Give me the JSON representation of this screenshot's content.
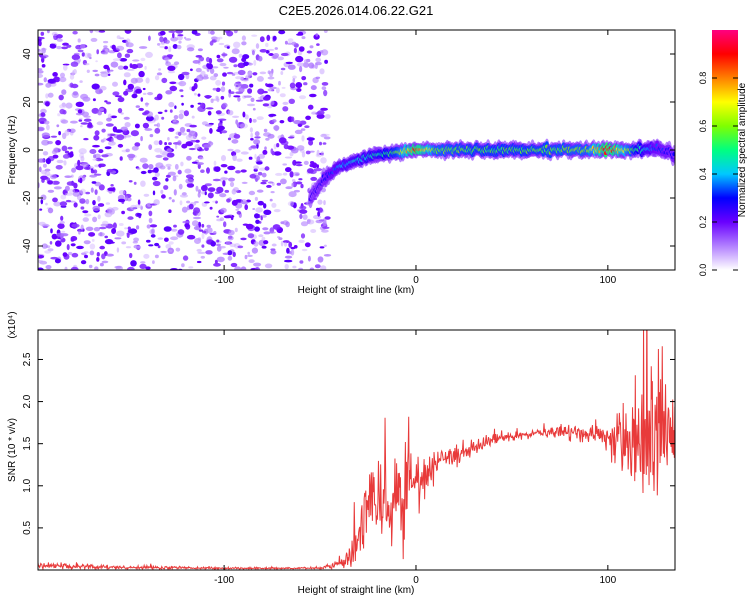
{
  "title": "C2E5.2026.014.06.22.G21",
  "chart_data": [
    {
      "type": "heatmap",
      "title": "C2E5.2026.014.06.22.G21",
      "xlabel": "Height of straight line (km)",
      "ylabel": "Frequency (Hz)",
      "xlim": [
        -197,
        135
      ],
      "ylim": [
        -50,
        50
      ],
      "xticks": [
        -100,
        0,
        100
      ],
      "xtick_labels": [
        "-100",
        "0",
        "100"
      ],
      "yticks": [
        -40,
        -20,
        0,
        20,
        40
      ],
      "ytick_labels": [
        "-40",
        "-20",
        "0",
        "20",
        "40"
      ],
      "colorbar": {
        "label": "Normalized spectral amplitude",
        "range": [
          0,
          1
        ],
        "ticks": [
          0,
          0.2,
          0.4,
          0.6,
          0.8
        ],
        "tick_labels": [
          "0.0",
          "0.2",
          "0.4",
          "0.6",
          "0.8"
        ],
        "colors": [
          "#ffffff",
          "#b280ff",
          "#6a00ff",
          "#0000ff",
          "#00c8ff",
          "#00ff80",
          "#80ff00",
          "#ffff00",
          "#ff8000",
          "#ff0000",
          "#ff0080"
        ]
      },
      "noise_region_x": [
        -197,
        -50
      ],
      "noise_amplitude": 0.2,
      "signal_ridge": {
        "x": [
          -55,
          -48,
          -40,
          -30,
          -20,
          -10,
          0,
          10,
          30,
          60,
          90,
          100,
          115,
          125,
          135
        ],
        "frequency": [
          -20,
          -12,
          -7,
          -4,
          -2,
          -1,
          0,
          0,
          0,
          0,
          0,
          0,
          0,
          1,
          -2
        ],
        "amplitude": [
          0.25,
          0.3,
          0.4,
          0.45,
          0.5,
          0.6,
          0.95,
          0.65,
          0.6,
          0.6,
          0.65,
          0.97,
          0.55,
          0.35,
          0.3
        ]
      }
    },
    {
      "type": "line",
      "xlabel": "Height of straight line (km)",
      "ylabel": "SNR (10 * v/v)",
      "y_multiplier": "(x10⁴)",
      "xlim": [
        -197,
        135
      ],
      "ylim": [
        0,
        2.85
      ],
      "xticks": [
        -100,
        0,
        100
      ],
      "xtick_labels": [
        "-100",
        "0",
        "100"
      ],
      "yticks": [
        0.5,
        1.0,
        1.5,
        2.0,
        2.5
      ],
      "ytick_labels": [
        "0.5",
        "1.0",
        "1.5",
        "2.0",
        "2.5"
      ],
      "series": [
        {
          "color": "#e83a3a",
          "x": [
            -197,
            -150,
            -100,
            -50,
            -38,
            -33,
            -30,
            -27,
            -24,
            -20,
            -18,
            -14,
            -10,
            -6,
            -4,
            0,
            5,
            10,
            20,
            30,
            40,
            50,
            60,
            70,
            80,
            90,
            100,
            110,
            115,
            120,
            125,
            130,
            135
          ],
          "values": [
            0.05,
            0.03,
            0.02,
            0.02,
            0.08,
            0.2,
            0.45,
            0.6,
            0.85,
            0.55,
            0.95,
            0.7,
            1.05,
            0.8,
            1.1,
            1.0,
            1.15,
            1.25,
            1.35,
            1.45,
            1.55,
            1.6,
            1.62,
            1.63,
            1.63,
            1.62,
            1.6,
            1.55,
            1.55,
            1.6,
            1.6,
            1.55,
            1.5
          ],
          "noise": [
            0.03,
            0.02,
            0.01,
            0.01,
            0.05,
            0.15,
            0.3,
            0.4,
            0.35,
            0.35,
            0.45,
            0.4,
            0.35,
            0.5,
            0.35,
            0.2,
            0.2,
            0.15,
            0.1,
            0.08,
            0.06,
            0.05,
            0.05,
            0.06,
            0.08,
            0.1,
            0.15,
            0.35,
            0.45,
            0.65,
            0.75,
            0.7,
            0.5
          ]
        }
      ]
    }
  ]
}
